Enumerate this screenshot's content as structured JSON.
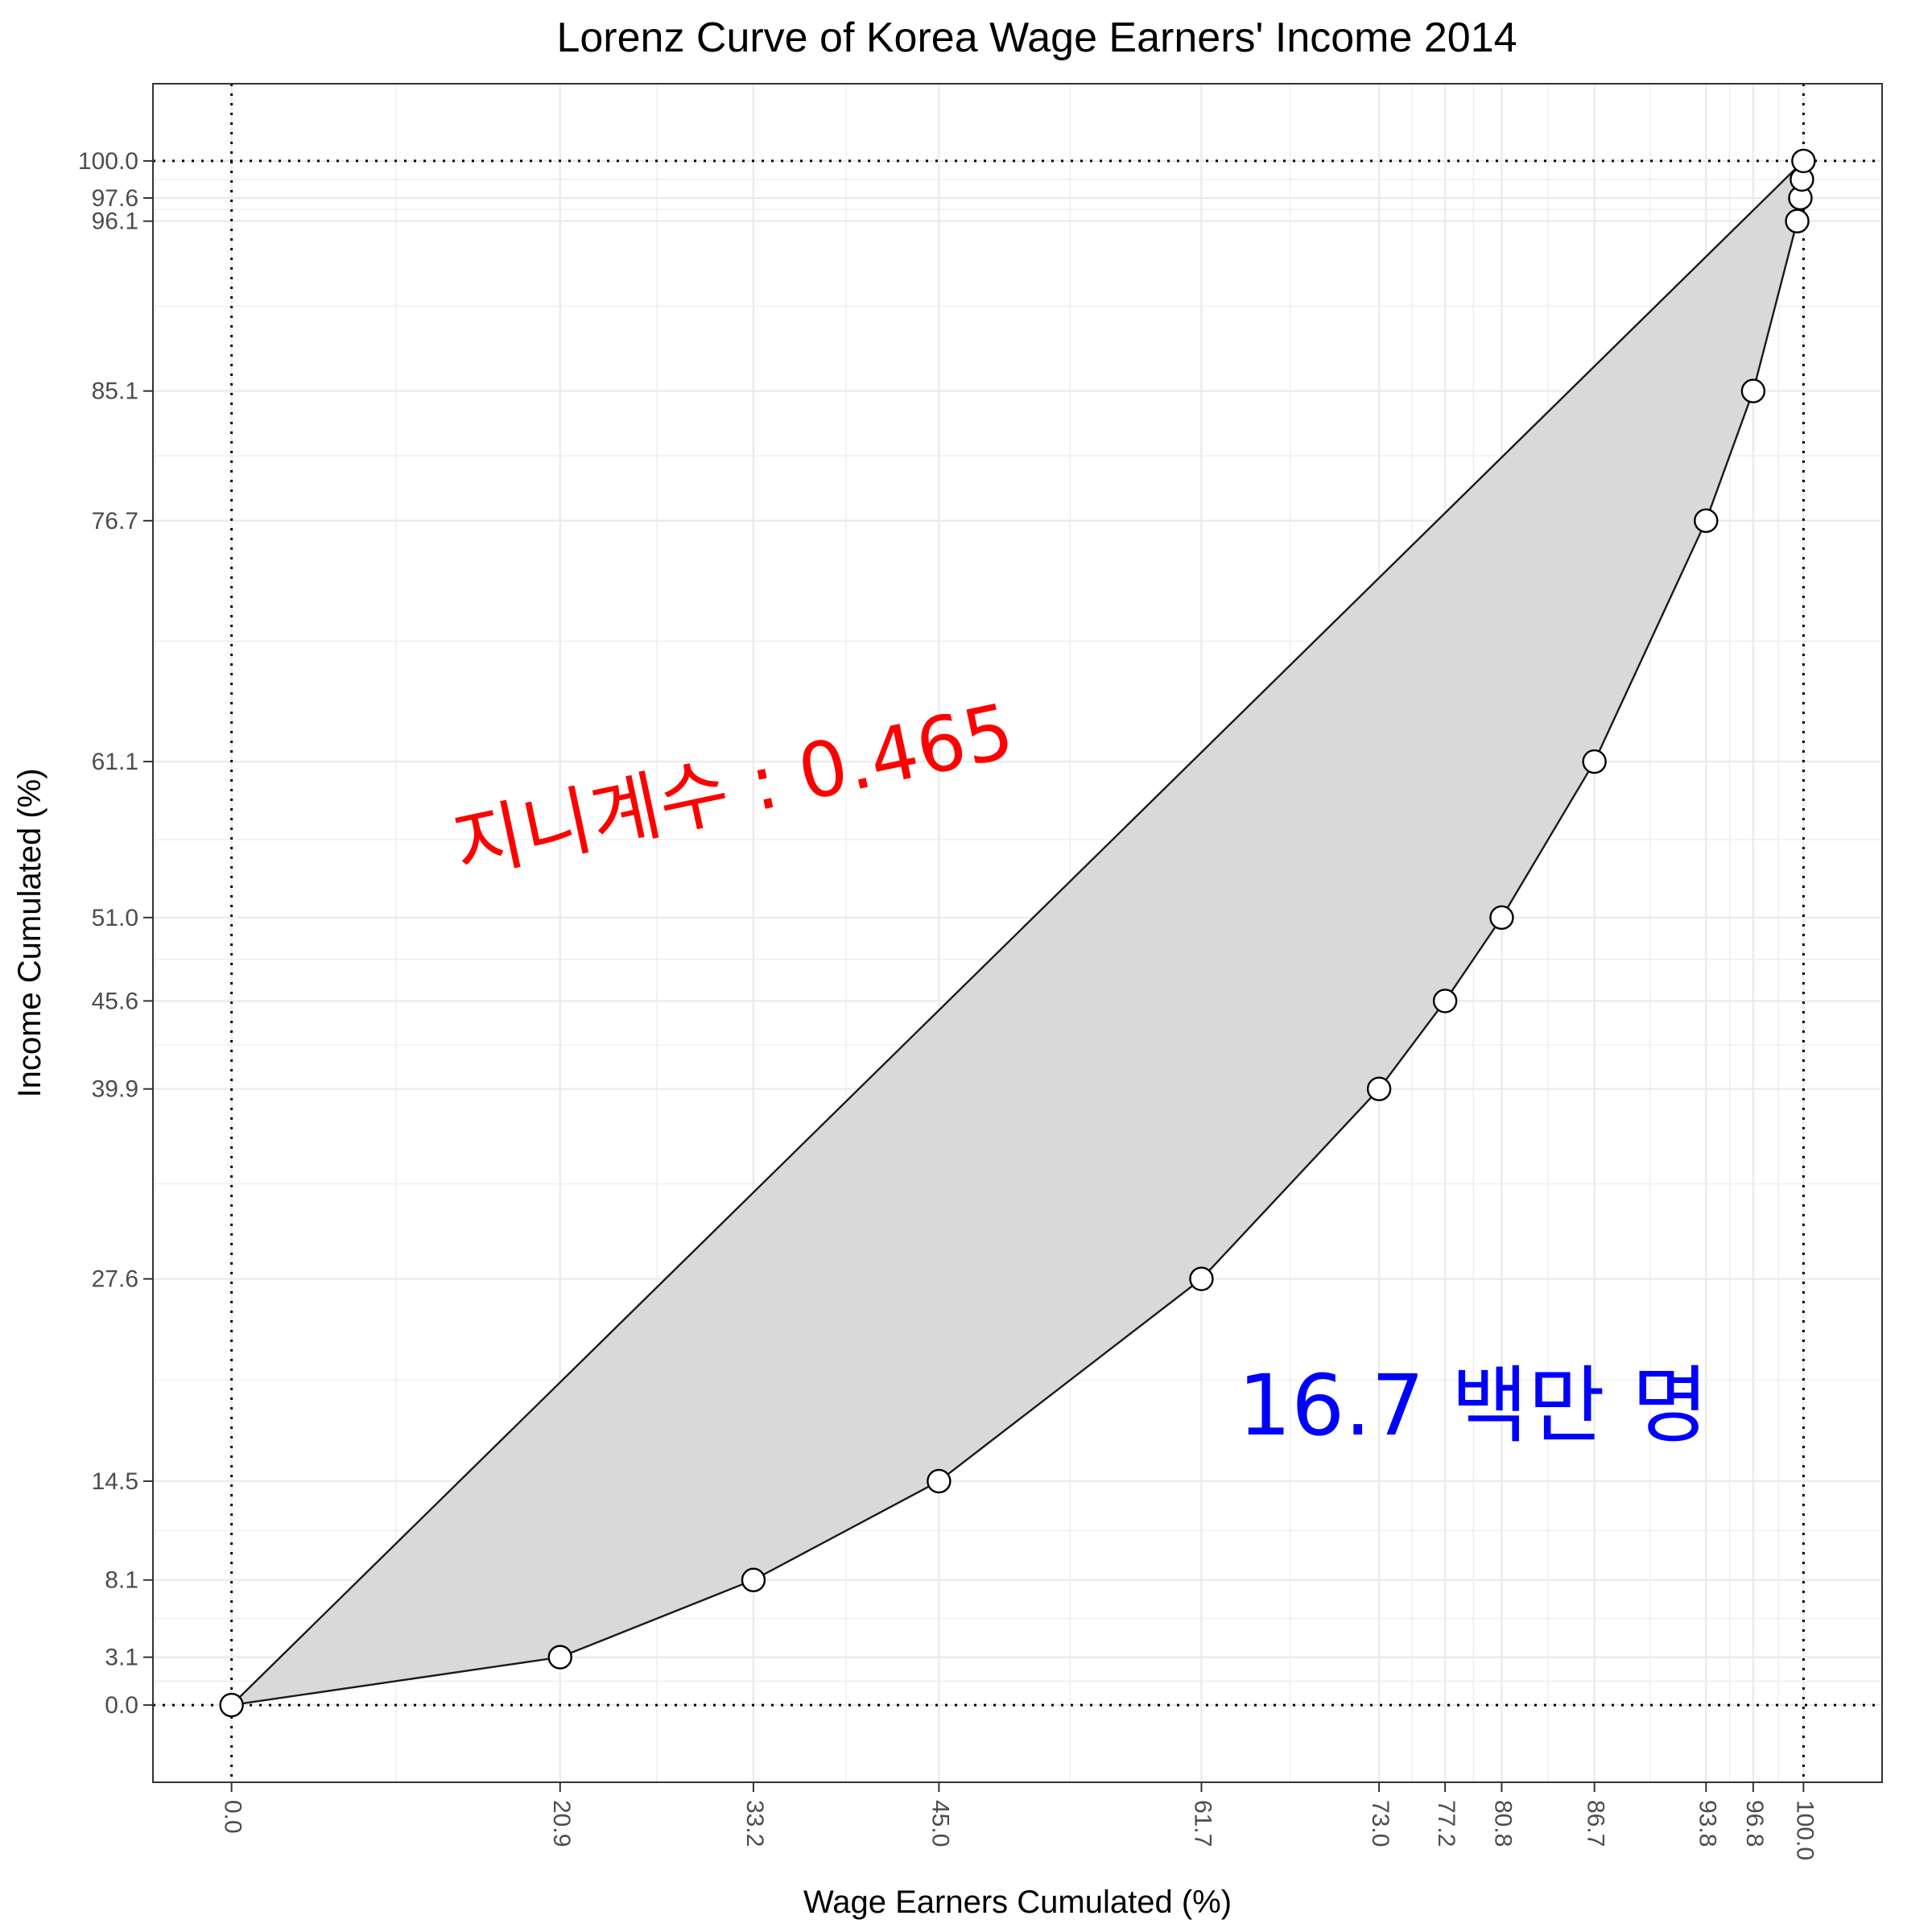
{
  "chart_data": {
    "type": "area",
    "title": "Lorenz Curve of Korea Wage Earners' Income 2014",
    "xlabel": "Wage Earners Cumulated (%)",
    "ylabel": "Income Cumulated (%)",
    "xlim": [
      -5,
      105
    ],
    "ylim": [
      -5,
      105
    ],
    "grid": true,
    "x": [
      0.0,
      20.9,
      33.2,
      45.0,
      61.7,
      73.0,
      77.2,
      80.8,
      86.7,
      93.8,
      96.8,
      99.6,
      99.8,
      99.9,
      100.0
    ],
    "y": [
      0.0,
      3.1,
      8.1,
      14.5,
      27.6,
      39.9,
      45.6,
      51.0,
      61.1,
      76.7,
      85.1,
      96.1,
      97.6,
      98.8,
      100.0
    ],
    "x_ticks": [
      "0.0",
      "20.9",
      "33.2",
      "45.0",
      "61.7",
      "73.0",
      "77.2",
      "80.8",
      "86.7",
      "93.8",
      "96.8",
      "100.0"
    ],
    "y_ticks": [
      "0.0",
      "3.1",
      "8.1",
      "14.5",
      "27.6",
      "39.9",
      "45.6",
      "51.0",
      "61.1",
      "76.7",
      "85.1",
      "96.1",
      "97.6",
      "100.0"
    ],
    "equality_line": [
      [
        0,
        0
      ],
      [
        100,
        100
      ]
    ],
    "reference_lines": {
      "x": [
        0,
        100
      ],
      "y": [
        0,
        100
      ]
    },
    "annotations": [
      {
        "text": "지니계수 : 0.465",
        "x": 32,
        "y": 59,
        "angle": 12,
        "color": "#ff0000"
      },
      {
        "text": "16.7 백만 명",
        "x": 79,
        "y": 19,
        "angle": 0,
        "color": "#0000ff"
      }
    ],
    "colors": {
      "fill": "#d9d9d9",
      "line": "#1a1a1a",
      "point_fill": "#ffffff",
      "grid": "#ebebeb"
    }
  }
}
